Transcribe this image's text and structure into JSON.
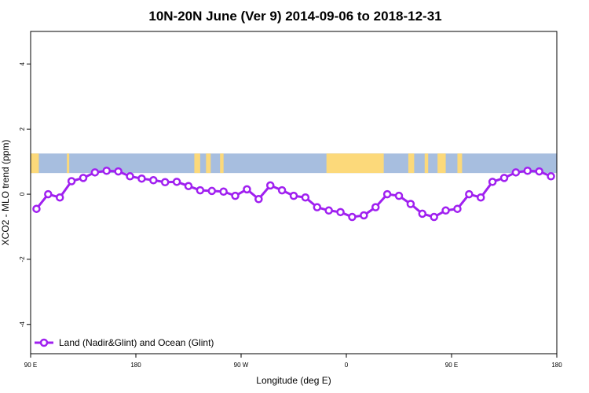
{
  "chart_data": {
    "type": "line",
    "title": "10N-20N June (Ver 9)   2014-09-06 to 2018-12-31",
    "xlabel": "Longitude (deg E)",
    "ylabel": "XCO2 - MLO trend (ppm)",
    "xlim": [
      90,
      540
    ],
    "ylim": [
      -4.9,
      5.0
    ],
    "x_ticks": [
      {
        "value": 90,
        "label": "90 E"
      },
      {
        "value": 180,
        "label": "180"
      },
      {
        "value": 270,
        "label": "90 W"
      },
      {
        "value": 360,
        "label": "0"
      },
      {
        "value": 450,
        "label": "90 E"
      },
      {
        "value": 540,
        "label": "180"
      }
    ],
    "y_ticks": [
      -4,
      -2,
      0,
      2,
      4
    ],
    "grid": false,
    "legend_position": "bottom-left",
    "series": [
      {
        "name": "Land (Nadir&Glint) and Ocean (Glint)",
        "color": "#a020f0",
        "x": [
          95,
          105,
          115,
          125,
          135,
          145,
          155,
          165,
          175,
          185,
          195,
          205,
          215,
          225,
          235,
          245,
          255,
          265,
          275,
          285,
          295,
          305,
          315,
          325,
          335,
          345,
          355,
          365,
          375,
          385,
          395,
          405,
          415,
          425,
          435,
          445,
          455,
          465,
          475,
          485,
          495,
          505,
          515,
          525,
          535
        ],
        "y": [
          -0.45,
          0.0,
          -0.1,
          0.4,
          0.5,
          0.67,
          0.72,
          0.7,
          0.55,
          0.48,
          0.43,
          0.37,
          0.38,
          0.25,
          0.12,
          0.1,
          0.08,
          -0.05,
          0.15,
          -0.15,
          0.27,
          0.12,
          -0.05,
          -0.1,
          -0.4,
          -0.5,
          -0.55,
          -0.7,
          -0.65,
          -0.4,
          0.0,
          -0.05,
          -0.3,
          -0.6,
          -0.7,
          -0.5,
          -0.45,
          0.0,
          -0.1,
          0.38,
          0.5,
          0.67,
          0.72,
          0.7,
          0.55
        ]
      }
    ],
    "map_band": {
      "y_range": [
        0.65,
        1.25
      ],
      "ocean_color": "#a7bedf",
      "land_color": "#fcd97a",
      "land_spans": [
        [
          90,
          97
        ],
        [
          121,
          123
        ],
        [
          230,
          235
        ],
        [
          240,
          244
        ],
        [
          252,
          255
        ],
        [
          343,
          392
        ],
        [
          413,
          418
        ],
        [
          427,
          430
        ],
        [
          438,
          445
        ],
        [
          455,
          459
        ]
      ]
    }
  }
}
